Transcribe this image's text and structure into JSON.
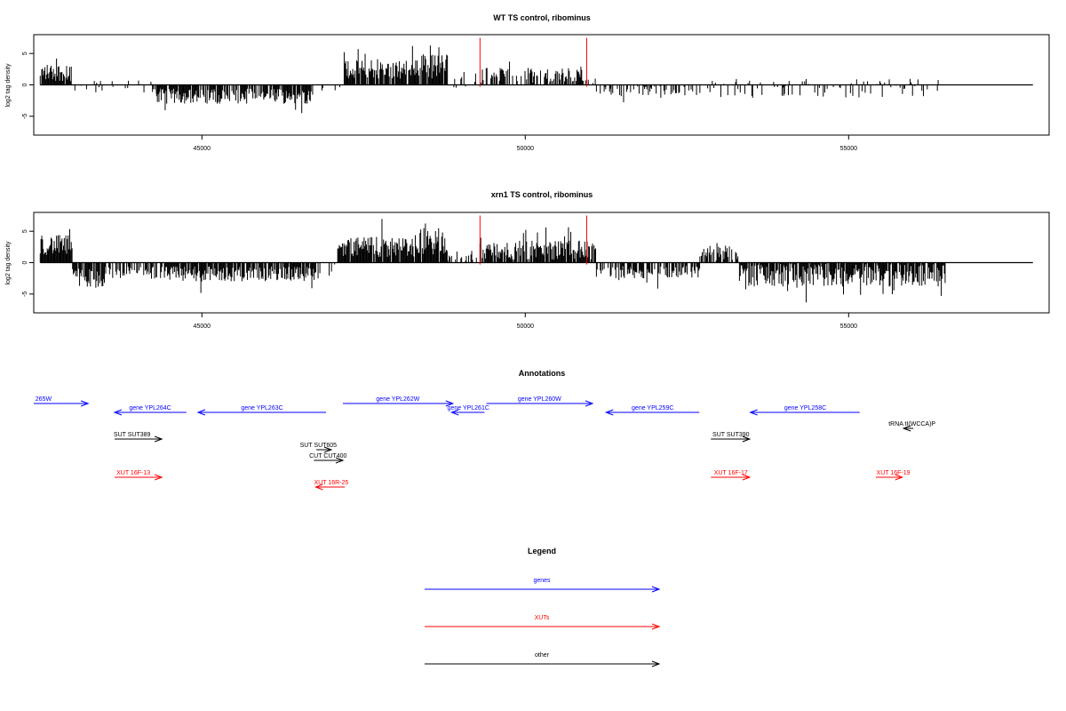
{
  "colors": {
    "gene": "#0000ff",
    "xut": "#ff0000",
    "other": "#000000",
    "marker": "#ff0000",
    "bars": "#000000"
  },
  "chart_data": [
    {
      "type": "bar",
      "title": "WT TS control, ribominus",
      "ylabel": "log2 tag density",
      "xlim": [
        42400,
        58100
      ],
      "ylim": [
        -8,
        8
      ],
      "xticks": [
        45000,
        50000,
        55000
      ],
      "yticks": [
        -5,
        0,
        5
      ],
      "markers": [
        49300,
        50950
      ],
      "bar_y_range": [
        -4.5,
        6.6
      ],
      "segments": [
        {
          "start": 42500,
          "end": 43000,
          "mean": 2.0,
          "amp": 1.4,
          "density": 0.9
        },
        {
          "start": 43000,
          "end": 44300,
          "mean": -0.3,
          "amp": 1.2,
          "density": 0.25
        },
        {
          "start": 44300,
          "end": 45500,
          "mean": -1.8,
          "amp": 1.2,
          "density": 0.8
        },
        {
          "start": 45500,
          "end": 46700,
          "mean": -1.8,
          "amp": 1.2,
          "density": 0.75
        },
        {
          "start": 46700,
          "end": 47200,
          "mean": -0.8,
          "amp": 0.8,
          "density": 0.15
        },
        {
          "start": 47200,
          "end": 48400,
          "mean": 2.5,
          "amp": 1.5,
          "density": 0.9
        },
        {
          "start": 48400,
          "end": 48800,
          "mean": 3.0,
          "amp": 2.0,
          "density": 0.9
        },
        {
          "start": 48800,
          "end": 49300,
          "mean": 0.5,
          "amp": 0.8,
          "density": 0.2
        },
        {
          "start": 49300,
          "end": 50950,
          "mean": 1.5,
          "amp": 1.2,
          "density": 0.6
        },
        {
          "start": 50950,
          "end": 51100,
          "mean": 0.5,
          "amp": 0.5,
          "density": 0.4
        },
        {
          "start": 51100,
          "end": 52700,
          "mean": -1.0,
          "amp": 0.8,
          "density": 0.35
        },
        {
          "start": 52700,
          "end": 56400,
          "mean": -0.5,
          "amp": 1.5,
          "density": 0.3
        }
      ]
    },
    {
      "type": "bar",
      "title": "xrn1 TS control, ribominus",
      "ylabel": "log2 tag density",
      "xlim": [
        42400,
        58100
      ],
      "ylim": [
        -8,
        8
      ],
      "xticks": [
        45000,
        50000,
        55000
      ],
      "yticks": [
        -5,
        0,
        5
      ],
      "markers": [
        49300,
        50950
      ],
      "bar_y_range": [
        -7.3,
        7.5
      ],
      "segments": [
        {
          "start": 42500,
          "end": 43000,
          "mean": 2.8,
          "amp": 1.6,
          "density": 1.0
        },
        {
          "start": 43000,
          "end": 43500,
          "mean": -2.5,
          "amp": 1.6,
          "density": 0.9
        },
        {
          "start": 43500,
          "end": 44300,
          "mean": -1.6,
          "amp": 1.0,
          "density": 0.6
        },
        {
          "start": 44300,
          "end": 46800,
          "mean": -1.8,
          "amp": 1.2,
          "density": 0.85
        },
        {
          "start": 46800,
          "end": 47100,
          "mean": -1.0,
          "amp": 0.8,
          "density": 0.2
        },
        {
          "start": 47100,
          "end": 48300,
          "mean": 2.5,
          "amp": 1.6,
          "density": 0.95
        },
        {
          "start": 48300,
          "end": 48800,
          "mean": 3.4,
          "amp": 2.2,
          "density": 0.95
        },
        {
          "start": 48800,
          "end": 49300,
          "mean": 1.0,
          "amp": 0.8,
          "density": 0.3
        },
        {
          "start": 49300,
          "end": 51100,
          "mean": 2.0,
          "amp": 1.5,
          "density": 0.85
        },
        {
          "start": 51100,
          "end": 52700,
          "mean": -1.5,
          "amp": 1.0,
          "density": 0.6
        },
        {
          "start": 52700,
          "end": 53300,
          "mean": 1.5,
          "amp": 1.2,
          "density": 0.7
        },
        {
          "start": 53300,
          "end": 56500,
          "mean": -2.0,
          "amp": 1.8,
          "density": 0.85
        }
      ]
    }
  ],
  "annotations": {
    "title": "Annotations",
    "items": [
      {
        "label": "265W",
        "color": "gene",
        "dir": "right",
        "start": 42400,
        "end": 43240,
        "row": 0,
        "label_at": 42550
      },
      {
        "label": "gene YPL264C",
        "color": "gene",
        "dir": "left",
        "start": 43650,
        "end": 44760,
        "row": 1,
        "label_at": 44200
      },
      {
        "label": "gene YPL263C",
        "color": "gene",
        "dir": "left",
        "start": 44940,
        "end": 46920,
        "row": 1,
        "label_at": 45930
      },
      {
        "label": "gene YPL262W",
        "color": "gene",
        "dir": "right",
        "start": 47180,
        "end": 48880,
        "row": 0,
        "label_at": 48030
      },
      {
        "label": "gene YPL261C",
        "color": "gene",
        "dir": "left",
        "start": 48860,
        "end": 49370,
        "row": 1,
        "label_at": 49120
      },
      {
        "label": "gene YPL260W",
        "color": "gene",
        "dir": "right",
        "start": 49400,
        "end": 51040,
        "row": 0,
        "label_at": 50220
      },
      {
        "label": "gene YPL259C",
        "color": "gene",
        "dir": "left",
        "start": 51250,
        "end": 52690,
        "row": 1,
        "label_at": 51970
      },
      {
        "label": "gene YPL258C",
        "color": "gene",
        "dir": "left",
        "start": 53480,
        "end": 55170,
        "row": 1,
        "label_at": 54330
      },
      {
        "label": "tRNA tI(WCCA)P",
        "color": "other",
        "dir": "left",
        "start": 55850,
        "end": 56000,
        "row": 2,
        "label_at": 55980
      },
      {
        "label": "SUT SUT389",
        "color": "other",
        "dir": "right",
        "start": 43650,
        "end": 44380,
        "row": 3,
        "label_at": 43920
      },
      {
        "label": "SUT SUT390",
        "color": "other",
        "dir": "right",
        "start": 52870,
        "end": 53470,
        "row": 3,
        "label_at": 53180
      },
      {
        "label": "SUT SUT605",
        "color": "other",
        "dir": "right",
        "start": 46770,
        "end": 47000,
        "row": 4,
        "label_at": 46800
      },
      {
        "label": "CUT CUT400",
        "color": "other",
        "dir": "right",
        "start": 46730,
        "end": 47180,
        "row": 5,
        "label_at": 46950
      },
      {
        "label": "XUT 16F-13",
        "color": "xut",
        "dir": "right",
        "start": 43650,
        "end": 44380,
        "row": 6,
        "label_at": 43940
      },
      {
        "label": "XUT 16R-25",
        "color": "xut",
        "dir": "left",
        "start": 46760,
        "end": 47210,
        "row": 7,
        "label_at": 47000
      },
      {
        "label": "XUT 16F-17",
        "color": "xut",
        "dir": "right",
        "start": 52870,
        "end": 53470,
        "row": 6,
        "label_at": 53180
      },
      {
        "label": "XUT 16F-19",
        "color": "xut",
        "dir": "right",
        "start": 55420,
        "end": 55830,
        "row": 6,
        "label_at": 55690
      }
    ]
  },
  "legend": {
    "title": "Legend",
    "items": [
      {
        "label": "genes",
        "color": "gene"
      },
      {
        "label": "XUTs",
        "color": "xut"
      },
      {
        "label": "other",
        "color": "other"
      }
    ]
  }
}
